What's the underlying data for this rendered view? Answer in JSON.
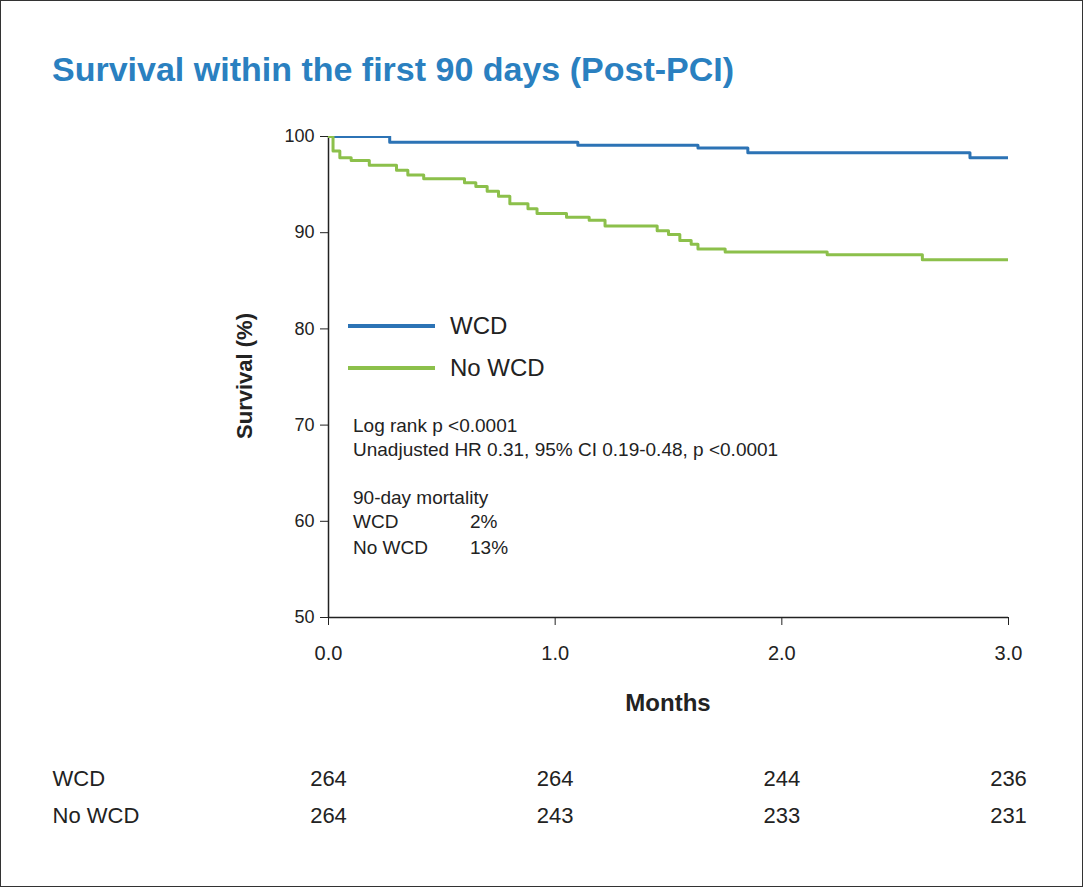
{
  "chart_data": {
    "type": "line",
    "title": "Survival within the first 90 days (Post-PCI)",
    "x_label": "Months",
    "y_label": "Survival (%)",
    "xlim": [
      0,
      3
    ],
    "xticks": [
      0,
      1,
      2,
      3
    ],
    "ylim": [
      50,
      100
    ],
    "yticks": [
      50,
      60,
      70,
      80,
      90,
      100
    ],
    "grid": false,
    "line_style": "step",
    "series": [
      {
        "name": "WCD",
        "color": "#2c73b5",
        "x": [
          0,
          0.27,
          1.1,
          1.63,
          1.85,
          2.83,
          3
        ],
        "values": [
          100,
          99.4,
          99.1,
          98.8,
          98.3,
          97.8,
          97.8
        ]
      },
      {
        "name": "No WCD",
        "color": "#8cc04b",
        "x": [
          0,
          0.02,
          0.05,
          0.1,
          0.18,
          0.3,
          0.35,
          0.42,
          0.6,
          0.65,
          0.7,
          0.75,
          0.8,
          0.88,
          0.92,
          1.05,
          1.15,
          1.22,
          1.45,
          1.5,
          1.55,
          1.6,
          1.63,
          1.75,
          2.2,
          2.62,
          3
        ],
        "values": [
          100,
          98.5,
          97.8,
          97.5,
          97.0,
          96.5,
          96.0,
          95.6,
          95.2,
          94.8,
          94.3,
          93.8,
          93.0,
          92.5,
          92.0,
          91.6,
          91.3,
          90.7,
          90.2,
          89.8,
          89.2,
          88.8,
          88.3,
          88.0,
          87.7,
          87.2,
          87.2
        ]
      }
    ],
    "annotations": [
      "Log rank p <0.0001",
      "Unadjusted HR 0.31, 95% CI 0.19-0.48, p <0.0001"
    ],
    "mortality": {
      "title": "90-day mortality",
      "rows": [
        {
          "name": "WCD",
          "value": 2,
          "label": "2%"
        },
        {
          "name": "No WCD",
          "value": 13,
          "label": "13%"
        }
      ]
    },
    "at_risk": {
      "x": [
        0,
        1,
        2,
        3
      ],
      "series": [
        {
          "name": "WCD",
          "values": [
            264,
            264,
            244,
            236
          ]
        },
        {
          "name": "No WCD",
          "values": [
            264,
            243,
            233,
            231
          ]
        }
      ]
    }
  }
}
